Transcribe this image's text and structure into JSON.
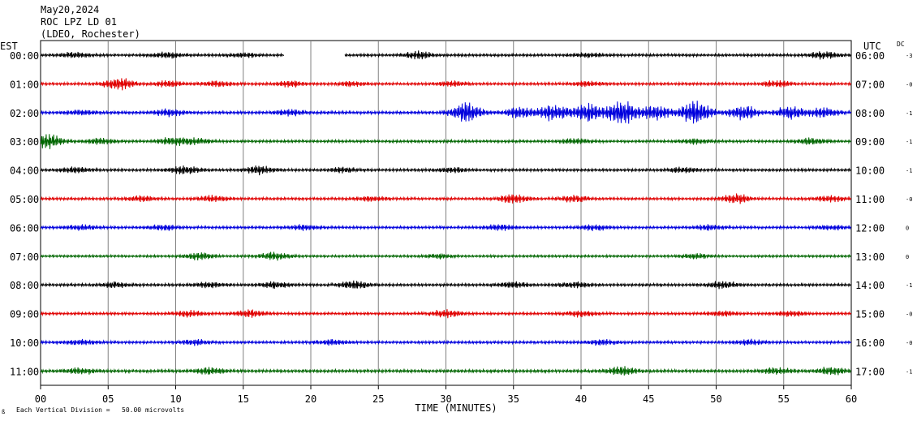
{
  "header": {
    "date": "May20,2024",
    "station": "ROC LPZ LD 01",
    "network": "(LDEO, Rochester)"
  },
  "left_tz": "EST",
  "right_tz": "UTC",
  "dc_label": "DC",
  "footer": {
    "scale_note": "Each Vertical Division =   50.00 microvolts",
    "corner_mark": "ß"
  },
  "chart_data": {
    "type": "line",
    "title": "",
    "xlabel": "TIME (MINUTES)",
    "ylabel": "",
    "xlim": [
      0,
      60
    ],
    "x_ticks": [
      {
        "value": 0,
        "label": "00"
      },
      {
        "value": 5,
        "label": "05"
      },
      {
        "value": 10,
        "label": "10"
      },
      {
        "value": 15,
        "label": "15"
      },
      {
        "value": 20,
        "label": "20"
      },
      {
        "value": 25,
        "label": "25"
      },
      {
        "value": 30,
        "label": "30"
      },
      {
        "value": 35,
        "label": "35"
      },
      {
        "value": 40,
        "label": "40"
      },
      {
        "value": 45,
        "label": "45"
      },
      {
        "value": 50,
        "label": "50"
      },
      {
        "value": 55,
        "label": "55"
      },
      {
        "value": 60,
        "label": "60"
      }
    ],
    "grid": true,
    "colors": [
      "#000000",
      "#e00000",
      "#0000dd",
      "#006600"
    ],
    "rows": [
      {
        "est": "00:00",
        "utc": "06:00",
        "dc": "-3",
        "color": "#000000",
        "amp": 0.8,
        "gap": [
          18,
          22.5
        ],
        "bursts": [
          {
            "t": 2.5,
            "a": 1.4
          },
          {
            "t": 9.5,
            "a": 1.6
          },
          {
            "t": 15,
            "a": 1.0
          },
          {
            "t": 28,
            "a": 1.8
          },
          {
            "t": 40.5,
            "a": 1.0
          },
          {
            "t": 58,
            "a": 2.0
          }
        ]
      },
      {
        "est": "01:00",
        "utc": "07:00",
        "dc": "-0",
        "color": "#e00000",
        "amp": 0.8,
        "bursts": [
          {
            "t": 5.8,
            "a": 3.5
          },
          {
            "t": 9.5,
            "a": 1.6
          },
          {
            "t": 13,
            "a": 1.5
          },
          {
            "t": 18.5,
            "a": 1.5
          },
          {
            "t": 23,
            "a": 1.2
          },
          {
            "t": 30.5,
            "a": 1.2
          },
          {
            "t": 40.5,
            "a": 1.3
          },
          {
            "t": 54.5,
            "a": 1.6
          }
        ]
      },
      {
        "est": "02:00",
        "utc": "08:00",
        "dc": "-1",
        "color": "#0000dd",
        "amp": 0.9,
        "bursts": [
          {
            "t": 3,
            "a": 1.2
          },
          {
            "t": 9.5,
            "a": 1.8
          },
          {
            "t": 18.5,
            "a": 1.4
          },
          {
            "t": 31.5,
            "a": 5.5
          },
          {
            "t": 35.5,
            "a": 3.2
          },
          {
            "t": 38,
            "a": 4.5
          },
          {
            "t": 40.5,
            "a": 5.0
          },
          {
            "t": 43,
            "a": 7.0
          },
          {
            "t": 45.5,
            "a": 4.0
          },
          {
            "t": 48.5,
            "a": 7.0
          },
          {
            "t": 52,
            "a": 4.0
          },
          {
            "t": 55.5,
            "a": 3.5
          },
          {
            "t": 58,
            "a": 2.5
          }
        ]
      },
      {
        "est": "03:00",
        "utc": "09:00",
        "dc": "-1",
        "color": "#006600",
        "amp": 0.8,
        "bursts": [
          {
            "t": 0.5,
            "a": 4.0
          },
          {
            "t": 4.5,
            "a": 1.6
          },
          {
            "t": 9.8,
            "a": 2.0
          },
          {
            "t": 11.5,
            "a": 1.6
          },
          {
            "t": 39.5,
            "a": 1.3
          },
          {
            "t": 48.5,
            "a": 1.3
          },
          {
            "t": 57,
            "a": 1.8
          }
        ]
      },
      {
        "est": "04:00",
        "utc": "10:00",
        "dc": "-1",
        "color": "#000000",
        "amp": 0.8,
        "bursts": [
          {
            "t": 2.5,
            "a": 1.6
          },
          {
            "t": 10.7,
            "a": 2.2
          },
          {
            "t": 16.2,
            "a": 2.2
          },
          {
            "t": 22.5,
            "a": 1.2
          },
          {
            "t": 30.5,
            "a": 1.2
          },
          {
            "t": 47.5,
            "a": 1.3
          }
        ]
      },
      {
        "est": "05:00",
        "utc": "11:00",
        "dc": "-0",
        "color": "#e00000",
        "amp": 0.8,
        "bursts": [
          {
            "t": 7.5,
            "a": 1.3
          },
          {
            "t": 12.8,
            "a": 1.6
          },
          {
            "t": 24.5,
            "a": 1.3
          },
          {
            "t": 35,
            "a": 2.3
          },
          {
            "t": 39.5,
            "a": 1.7
          },
          {
            "t": 51.5,
            "a": 2.4
          },
          {
            "t": 58.5,
            "a": 1.4
          }
        ]
      },
      {
        "est": "06:00",
        "utc": "12:00",
        "dc": "0",
        "color": "#0000dd",
        "amp": 0.8,
        "bursts": [
          {
            "t": 3,
            "a": 1.3
          },
          {
            "t": 9,
            "a": 1.4
          },
          {
            "t": 19.5,
            "a": 1.3
          },
          {
            "t": 34,
            "a": 1.4
          },
          {
            "t": 41,
            "a": 1.5
          },
          {
            "t": 49.5,
            "a": 1.3
          },
          {
            "t": 58.5,
            "a": 1.2
          }
        ]
      },
      {
        "est": "07:00",
        "utc": "13:00",
        "dc": "0",
        "color": "#006600",
        "amp": 0.7,
        "bursts": [
          {
            "t": 11.8,
            "a": 1.9
          },
          {
            "t": 17.3,
            "a": 2.1
          },
          {
            "t": 29.5,
            "a": 1.1
          },
          {
            "t": 48.5,
            "a": 1.2
          }
        ]
      },
      {
        "est": "08:00",
        "utc": "14:00",
        "dc": "-1",
        "color": "#000000",
        "amp": 0.8,
        "bursts": [
          {
            "t": 5.5,
            "a": 1.4
          },
          {
            "t": 12.5,
            "a": 1.4
          },
          {
            "t": 17.3,
            "a": 1.7
          },
          {
            "t": 23.2,
            "a": 2.2
          },
          {
            "t": 35,
            "a": 1.6
          },
          {
            "t": 39.5,
            "a": 1.4
          },
          {
            "t": 50.5,
            "a": 1.8
          }
        ]
      },
      {
        "est": "09:00",
        "utc": "15:00",
        "dc": "-0",
        "color": "#e00000",
        "amp": 0.8,
        "bursts": [
          {
            "t": 11,
            "a": 1.5
          },
          {
            "t": 15.5,
            "a": 1.8
          },
          {
            "t": 30,
            "a": 2.0
          },
          {
            "t": 40,
            "a": 1.6
          },
          {
            "t": 50.5,
            "a": 1.4
          },
          {
            "t": 55.5,
            "a": 1.5
          }
        ]
      },
      {
        "est": "10:00",
        "utc": "16:00",
        "dc": "-0",
        "color": "#0000dd",
        "amp": 0.8,
        "bursts": [
          {
            "t": 3,
            "a": 1.2
          },
          {
            "t": 11.5,
            "a": 1.4
          },
          {
            "t": 21.5,
            "a": 1.4
          },
          {
            "t": 41.5,
            "a": 1.4
          },
          {
            "t": 52.5,
            "a": 1.3
          }
        ]
      },
      {
        "est": "11:00",
        "utc": "17:00",
        "dc": "-1",
        "color": "#006600",
        "amp": 0.9,
        "bursts": [
          {
            "t": 3,
            "a": 1.5
          },
          {
            "t": 12.5,
            "a": 1.7
          },
          {
            "t": 43,
            "a": 2.2
          },
          {
            "t": 54.5,
            "a": 1.5
          },
          {
            "t": 58.5,
            "a": 1.9
          }
        ]
      }
    ]
  }
}
